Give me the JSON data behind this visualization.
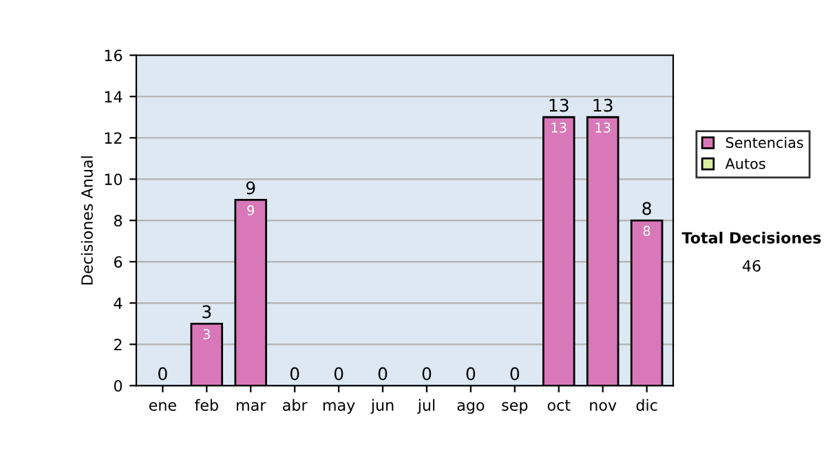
{
  "chart_data": {
    "type": "bar",
    "stacked": true,
    "ylabel": "Decisiones Anual",
    "categories": [
      "ene",
      "feb",
      "mar",
      "abr",
      "may",
      "jun",
      "jul",
      "ago",
      "sep",
      "oct",
      "nov",
      "dic"
    ],
    "series": [
      {
        "name": "Sentencias",
        "color": "#d878b8",
        "values": [
          0,
          3,
          9,
          0,
          0,
          0,
          0,
          0,
          0,
          13,
          13,
          8
        ],
        "value_labels": [
          null,
          "3",
          "9",
          null,
          null,
          null,
          null,
          null,
          null,
          "13",
          "13",
          "8"
        ]
      },
      {
        "name": "Autos",
        "color": "#d8f0a0",
        "values": [
          0,
          0,
          0,
          0,
          0,
          0,
          0,
          0,
          0,
          0,
          0,
          0
        ]
      }
    ],
    "totals": [
      "0",
      "3",
      "9",
      "0",
      "0",
      "0",
      "0",
      "0",
      "0",
      "13",
      "13",
      "8"
    ],
    "ylim": [
      0,
      16
    ],
    "yticks": [
      0,
      2,
      4,
      6,
      8,
      10,
      12,
      14,
      16
    ],
    "grid": "y",
    "legend": "right",
    "annotations": [
      "Total Decisiones",
      "46"
    ]
  }
}
